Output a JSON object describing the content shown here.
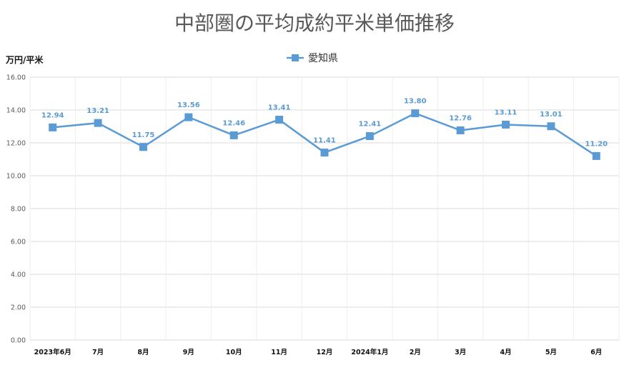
{
  "chart_data": {
    "type": "line",
    "title": "中部圏の平均成約平米単価推移",
    "ylabel": "万円/平米",
    "xlabel": "",
    "categories": [
      "2023年6月",
      "7月",
      "8月",
      "9月",
      "10月",
      "11月",
      "12月",
      "2024年1月",
      "2月",
      "3月",
      "4月",
      "5月",
      "6月"
    ],
    "series": [
      {
        "name": "愛知県",
        "values": [
          12.94,
          13.21,
          11.75,
          13.56,
          12.46,
          13.41,
          11.41,
          12.41,
          13.8,
          12.76,
          13.11,
          13.01,
          11.2
        ],
        "labels": [
          "12.94",
          "13.21",
          "11.75",
          "13.56",
          "12.46",
          "13.41",
          "11.41",
          "12.41",
          "13.80",
          "12.76",
          "13.11",
          "13.01",
          "11.20"
        ]
      }
    ],
    "ylim": [
      0,
      16
    ],
    "yticks": [
      "0.00",
      "2.00",
      "4.00",
      "6.00",
      "8.00",
      "10.00",
      "12.00",
      "14.00",
      "16.00"
    ],
    "grid": true,
    "legend_position": "top-center",
    "colors": {
      "series": "#5b9bd5",
      "grid": "#d9d9d9",
      "title": "#595959"
    }
  }
}
